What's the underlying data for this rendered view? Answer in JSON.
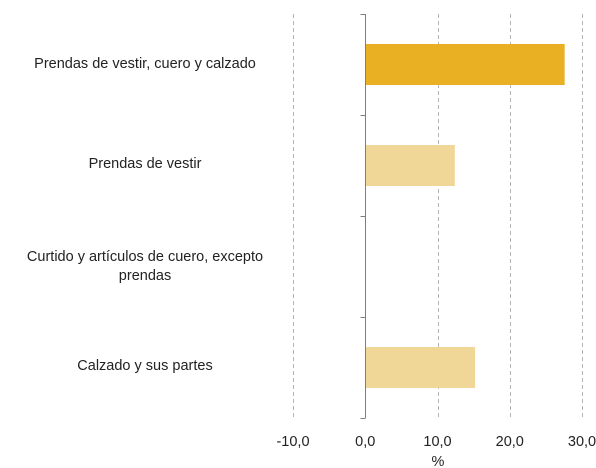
{
  "chart_data": {
    "type": "bar",
    "orientation": "horizontal",
    "categories": [
      "Prendas de vestir, cuero y calzado",
      "Prendas de vestir",
      "Curtido y artículos de cuero, excepto prendas",
      "Calzado y sus partes"
    ],
    "values": [
      27.6,
      12.4,
      0.0,
      15.2
    ],
    "colors": [
      "#E8B022",
      "#F1D797",
      "#F1D797",
      "#F1D797"
    ],
    "xlim": [
      -10,
      30
    ],
    "xticks": [
      -10,
      0,
      10,
      20,
      30
    ],
    "xtick_labels": [
      "-10,0",
      "0,0",
      "10,0",
      "20,0",
      "30,0"
    ],
    "xlabel": "%",
    "grid": "vertical dashed"
  }
}
